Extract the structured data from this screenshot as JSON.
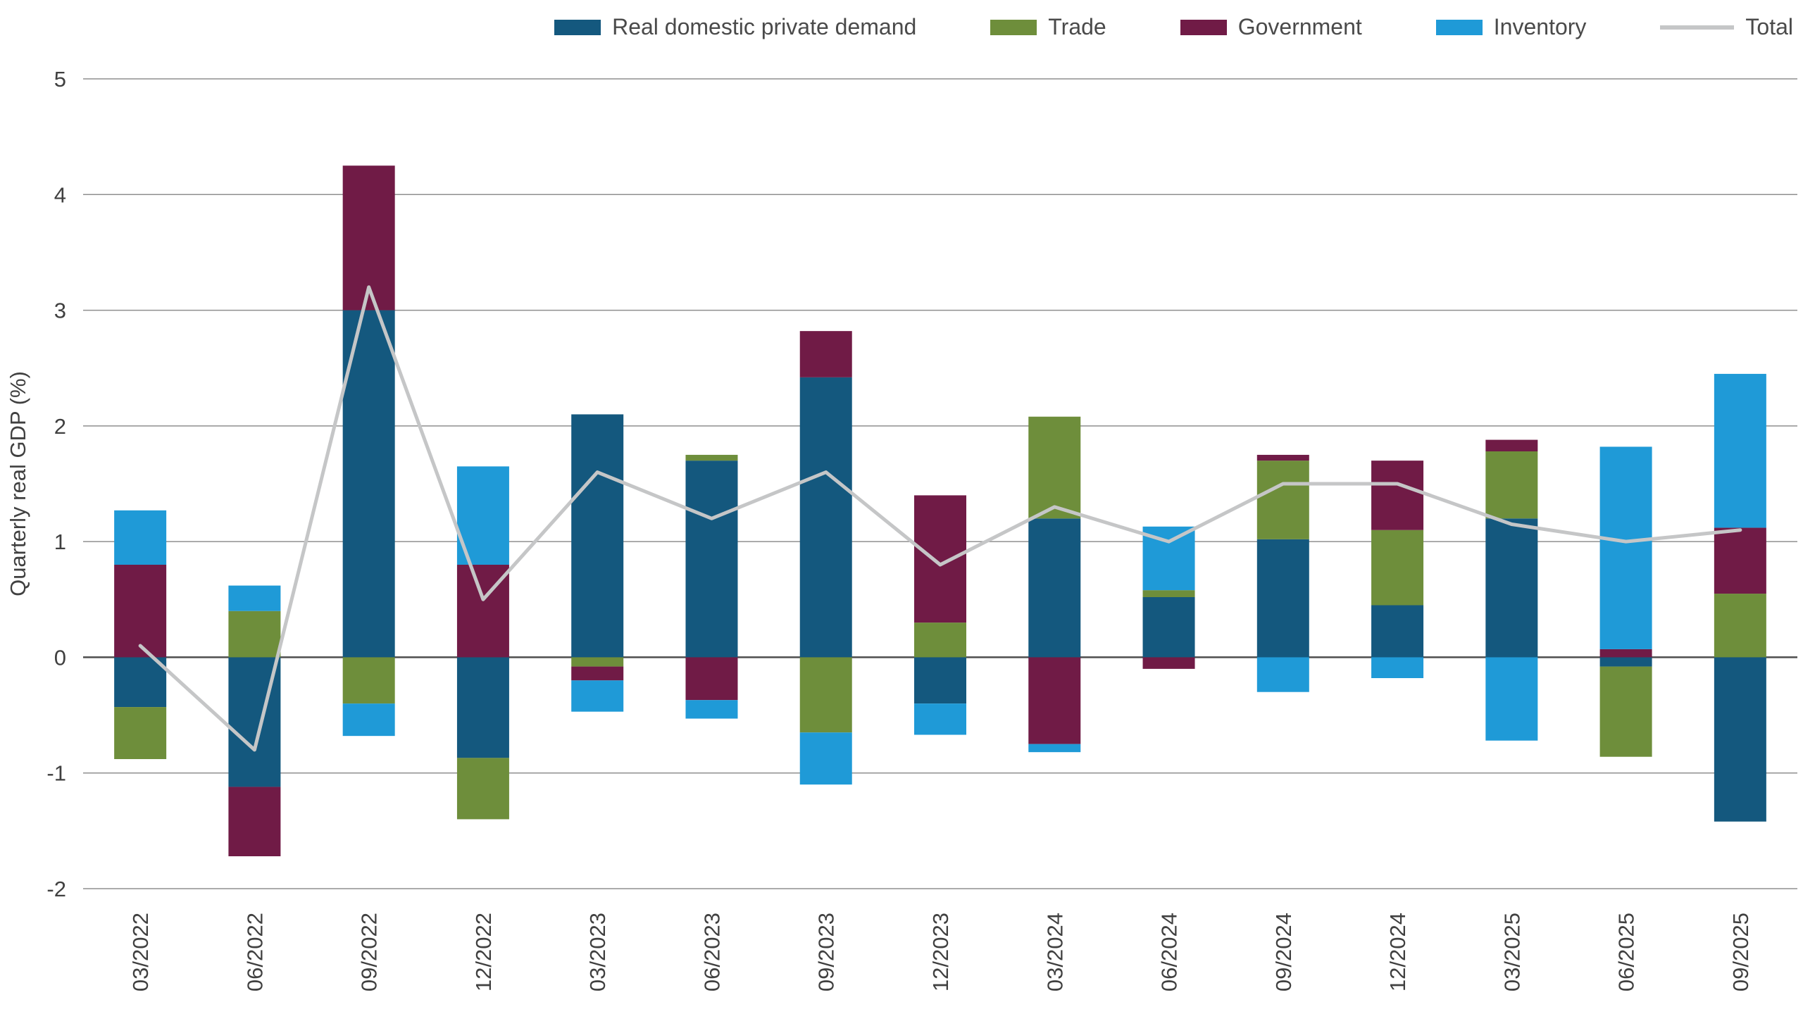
{
  "chart_data": {
    "type": "bar",
    "stacked": true,
    "title": "",
    "xlabel": "",
    "ylabel": "Quarterly real GDP (%)",
    "ylim": [
      -2,
      5
    ],
    "yticks": [
      5,
      4,
      3,
      2,
      1,
      0,
      -1,
      -2
    ],
    "grid": "horizontal",
    "legend_position": "top",
    "categories": [
      "03/2022",
      "06/2022",
      "09/2022",
      "12/2022",
      "03/2023",
      "06/2023",
      "09/2023",
      "12/2023",
      "03/2024",
      "06/2024",
      "09/2024",
      "12/2024",
      "03/2025",
      "06/2025",
      "09/2025"
    ],
    "series": [
      {
        "name": "Real domestic private demand",
        "color": "#14587e",
        "values": [
          -0.43,
          -1.12,
          3.0,
          -0.87,
          2.1,
          1.7,
          2.42,
          -0.4,
          1.2,
          0.52,
          1.02,
          0.45,
          1.2,
          -0.08,
          -1.42
        ]
      },
      {
        "name": "Trade",
        "color": "#6e8e3b",
        "values": [
          -0.45,
          0.4,
          -0.4,
          -0.53,
          -0.08,
          0.05,
          -0.65,
          0.3,
          0.88,
          0.06,
          0.68,
          0.65,
          0.58,
          -0.78,
          0.55
        ]
      },
      {
        "name": "Government",
        "color": "#701b46",
        "values": [
          0.8,
          -0.6,
          1.25,
          0.8,
          -0.12,
          -0.37,
          0.4,
          1.1,
          -0.75,
          -0.1,
          0.05,
          0.6,
          0.1,
          0.07,
          0.57
        ]
      },
      {
        "name": "Inventory",
        "color": "#1f9ad7",
        "values": [
          0.47,
          0.22,
          -0.28,
          0.85,
          -0.27,
          -0.16,
          -0.45,
          -0.27,
          -0.07,
          0.55,
          -0.3,
          -0.18,
          -0.72,
          1.75,
          1.33
        ]
      }
    ],
    "line_series": {
      "name": "Total",
      "color": "#c5c6c7",
      "values": [
        0.1,
        -0.8,
        3.2,
        0.5,
        1.6,
        1.2,
        1.6,
        0.8,
        1.3,
        1.0,
        1.5,
        1.5,
        1.15,
        1.0,
        1.1
      ]
    },
    "colors": {
      "gridline": "#8f8f8f",
      "zero_line": "#4d4d4d",
      "axis_text": "#404040"
    }
  }
}
